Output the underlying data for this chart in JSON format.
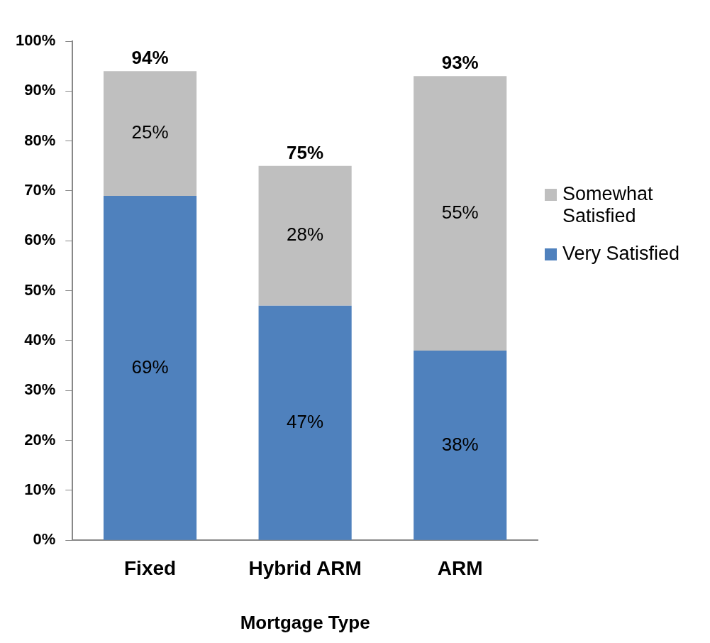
{
  "chart_data": {
    "type": "bar",
    "stacked": true,
    "xlabel": "Mortgage Type",
    "categories": [
      "Fixed",
      "Hybrid ARM",
      "ARM"
    ],
    "series": [
      {
        "name": "Very Satisfied",
        "color": "#4f81bd",
        "values": [
          69,
          47,
          38
        ],
        "value_labels": [
          "69%",
          "47%",
          "38%"
        ]
      },
      {
        "name": "Somewhat Satisfied",
        "color": "#bfbfbf",
        "values": [
          25,
          28,
          55
        ],
        "value_labels": [
          "25%",
          "28%",
          "55%"
        ]
      }
    ],
    "ylim": [
      0,
      100
    ],
    "yticks": [
      {
        "value": 0,
        "label": "0%"
      },
      {
        "value": 10,
        "label": "10%"
      },
      {
        "value": 20,
        "label": "20%"
      },
      {
        "value": 30,
        "label": "30%"
      },
      {
        "value": 40,
        "label": "40%"
      },
      {
        "value": 50,
        "label": "50%"
      },
      {
        "value": 60,
        "label": "60%"
      },
      {
        "value": 70,
        "label": "70%"
      },
      {
        "value": 80,
        "label": "80%"
      },
      {
        "value": 90,
        "label": "90%"
      },
      {
        "value": 100,
        "label": "100%"
      }
    ],
    "totals": [
      "94%",
      "75%",
      "93%"
    ],
    "grid": false,
    "legend": "right"
  }
}
